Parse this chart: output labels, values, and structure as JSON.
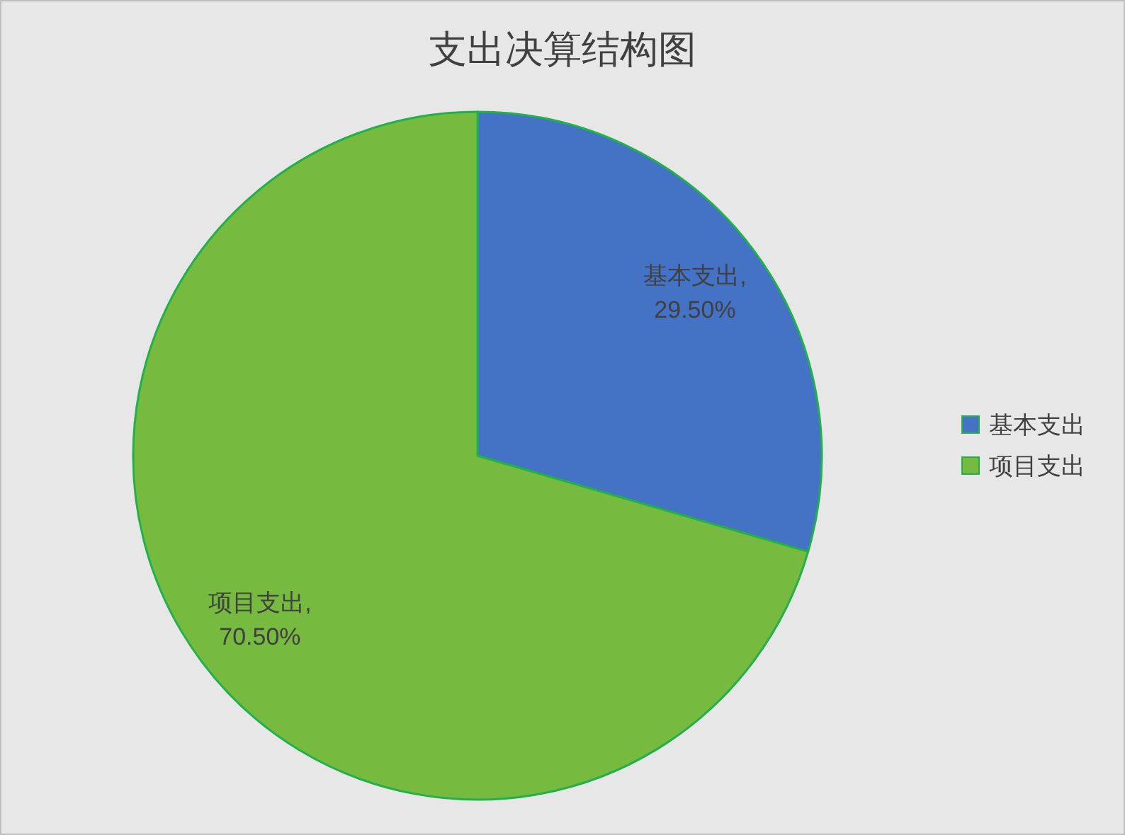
{
  "chart_data": {
    "type": "pie",
    "title": "支出决算结构图",
    "categories": [
      "基本支出",
      "项目支出"
    ],
    "values": [
      29.5,
      70.5
    ],
    "colors": [
      "#4472c4",
      "#76bb40"
    ],
    "value_labels": [
      "基本支出,\n29.50%",
      "项目支出,\n70.50%"
    ],
    "legend": "right"
  }
}
